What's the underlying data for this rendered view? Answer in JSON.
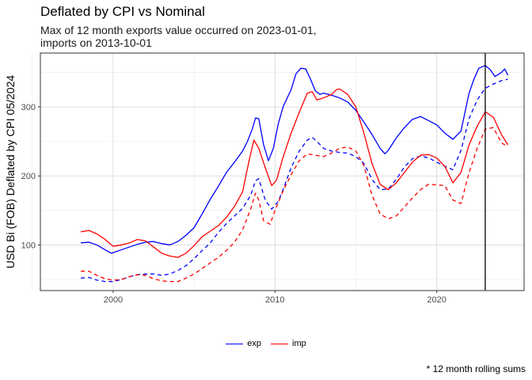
{
  "chart_data": {
    "type": "line",
    "title": "Deflated by CPI vs Nominal",
    "subtitle_lines": [
      "Max of 12 month exports value occurred on 2023-01-01,",
      "imports on 2013-10-01"
    ],
    "ylabel": "USD Bi (FOB) Deflated by CPI 05/2024",
    "xlabel": "",
    "caption": "* 12 month rolling sums",
    "xlim": [
      1995.5,
      2025.4
    ],
    "ylim": [
      34,
      378
    ],
    "x_ticks": [
      2000,
      2010,
      2020
    ],
    "x_tick_labels": [
      "2000",
      "2010",
      "2020"
    ],
    "y_ticks": [
      100,
      200,
      300
    ],
    "y_tick_labels": [
      "100",
      "200",
      "300"
    ],
    "grid": true,
    "legend_position": "bottom",
    "vline_x": 2023.0,
    "series": [
      {
        "name": "exp",
        "color": "#0000ff",
        "line": "solid",
        "x": [
          1998.0,
          1998.5,
          1999.0,
          1999.5,
          1999.9,
          2000.5,
          2001.0,
          2001.5,
          2002.0,
          2002.5,
          2003.0,
          2003.5,
          2004.0,
          2004.5,
          2005.0,
          2005.5,
          2006.0,
          2006.5,
          2007.0,
          2007.5,
          2008.0,
          2008.3,
          2008.6,
          2008.8,
          2009.0,
          2009.3,
          2009.6,
          2009.9,
          2010.2,
          2010.5,
          2011.0,
          2011.3,
          2011.6,
          2011.9,
          2012.2,
          2012.5,
          2012.8,
          2013.0,
          2013.5,
          2014.0,
          2014.5,
          2015.0,
          2015.5,
          2016.0,
          2016.5,
          2016.8,
          2017.0,
          2017.5,
          2018.0,
          2018.5,
          2019.0,
          2019.5,
          2020.0,
          2020.5,
          2021.0,
          2021.5,
          2022.0,
          2022.3,
          2022.6,
          2023.0,
          2023.3,
          2023.6,
          2024.0,
          2024.2,
          2024.4
        ],
        "values": [
          103,
          104,
          100,
          93,
          88,
          93,
          97,
          101,
          104,
          105,
          102,
          100,
          105,
          114,
          125,
          145,
          166,
          185,
          205,
          220,
          236,
          250,
          268,
          284,
          283,
          245,
          222,
          240,
          275,
          300,
          325,
          348,
          356,
          355,
          340,
          323,
          318,
          320,
          317,
          313,
          307,
          295,
          278,
          260,
          240,
          232,
          237,
          255,
          270,
          282,
          286,
          280,
          274,
          262,
          253,
          265,
          320,
          340,
          356,
          360,
          354,
          344,
          350,
          355,
          346
        ]
      },
      {
        "name": "exp_nominal",
        "color": "#0000ff",
        "line": "dashed",
        "x": [
          1998.0,
          1998.5,
          1999.0,
          1999.5,
          2000.0,
          2000.5,
          2001.0,
          2001.5,
          2002.0,
          2002.5,
          2003.0,
          2003.5,
          2004.0,
          2004.5,
          2005.0,
          2005.5,
          2006.0,
          2006.5,
          2007.0,
          2007.5,
          2008.0,
          2008.5,
          2008.8,
          2009.0,
          2009.4,
          2009.8,
          2010.2,
          2010.5,
          2011.0,
          2011.5,
          2012.0,
          2012.3,
          2012.6,
          2013.0,
          2013.5,
          2014.0,
          2014.5,
          2015.0,
          2015.5,
          2016.0,
          2016.5,
          2017.0,
          2017.5,
          2018.0,
          2018.5,
          2019.0,
          2019.5,
          2020.0,
          2020.5,
          2021.0,
          2021.5,
          2022.0,
          2022.5,
          2023.0,
          2023.5,
          2024.0,
          2024.4
        ],
        "values": [
          52,
          53,
          49,
          47,
          47,
          50,
          54,
          57,
          58,
          58,
          56,
          58,
          63,
          70,
          80,
          92,
          103,
          118,
          131,
          142,
          153,
          172,
          193,
          196,
          165,
          152,
          163,
          180,
          212,
          236,
          252,
          256,
          250,
          240,
          236,
          234,
          233,
          228,
          218,
          195,
          180,
          181,
          195,
          213,
          225,
          229,
          226,
          220,
          214,
          209,
          237,
          283,
          310,
          327,
          333,
          338,
          340
        ]
      },
      {
        "name": "imp",
        "color": "#ff0000",
        "line": "solid",
        "x": [
          1998.0,
          1998.5,
          1999.0,
          1999.5,
          2000.0,
          2000.5,
          2001.0,
          2001.5,
          2002.0,
          2002.5,
          2003.0,
          2003.5,
          2004.0,
          2004.5,
          2005.0,
          2005.5,
          2006.0,
          2006.5,
          2007.0,
          2007.5,
          2008.0,
          2008.4,
          2008.7,
          2009.0,
          2009.4,
          2009.8,
          2010.1,
          2010.5,
          2011.0,
          2011.5,
          2012.0,
          2012.3,
          2012.6,
          2013.0,
          2013.5,
          2013.8,
          2014.0,
          2014.5,
          2015.0,
          2015.5,
          2016.0,
          2016.5,
          2017.0,
          2017.5,
          2018.0,
          2018.5,
          2019.0,
          2019.5,
          2020.0,
          2020.5,
          2021.0,
          2021.5,
          2022.0,
          2022.5,
          2023.0,
          2023.5,
          2024.0,
          2024.4
        ],
        "values": [
          119,
          121,
          116,
          108,
          98,
          100,
          103,
          108,
          106,
          97,
          88,
          84,
          82,
          88,
          99,
          112,
          120,
          128,
          140,
          156,
          177,
          222,
          252,
          240,
          212,
          186,
          194,
          227,
          262,
          292,
          320,
          322,
          310,
          313,
          318,
          325,
          326,
          318,
          300,
          262,
          218,
          188,
          180,
          190,
          205,
          220,
          230,
          231,
          226,
          214,
          190,
          205,
          245,
          272,
          293,
          285,
          260,
          245
        ]
      },
      {
        "name": "imp_nominal",
        "color": "#ff0000",
        "line": "dashed",
        "x": [
          1998.0,
          1998.5,
          1999.0,
          1999.5,
          2000.0,
          2000.5,
          2001.0,
          2001.5,
          2002.0,
          2002.5,
          2003.0,
          2003.5,
          2004.0,
          2004.5,
          2005.0,
          2005.5,
          2006.0,
          2006.5,
          2007.0,
          2007.5,
          2008.0,
          2008.5,
          2008.8,
          2009.0,
          2009.3,
          2009.7,
          2010.0,
          2010.5,
          2011.0,
          2011.5,
          2012.0,
          2012.5,
          2013.0,
          2013.5,
          2014.0,
          2014.5,
          2015.0,
          2015.5,
          2016.0,
          2016.5,
          2017.0,
          2017.5,
          2018.0,
          2018.5,
          2019.0,
          2019.5,
          2020.0,
          2020.5,
          2021.0,
          2021.5,
          2022.0,
          2022.5,
          2023.0,
          2023.5,
          2024.0,
          2024.4
        ],
        "values": [
          62,
          62,
          56,
          51,
          49,
          50,
          54,
          57,
          56,
          51,
          48,
          47,
          47,
          52,
          58,
          66,
          74,
          82,
          92,
          104,
          122,
          152,
          175,
          165,
          135,
          130,
          150,
          178,
          202,
          222,
          232,
          230,
          228,
          233,
          240,
          242,
          236,
          215,
          172,
          145,
          138,
          142,
          155,
          168,
          180,
          188,
          187,
          186,
          165,
          160,
          205,
          240,
          268,
          270,
          248,
          242
        ]
      }
    ]
  },
  "legend": {
    "items": [
      {
        "label": "exp",
        "color": "#0000ff"
      },
      {
        "label": "imp",
        "color": "#ff0000"
      }
    ]
  }
}
